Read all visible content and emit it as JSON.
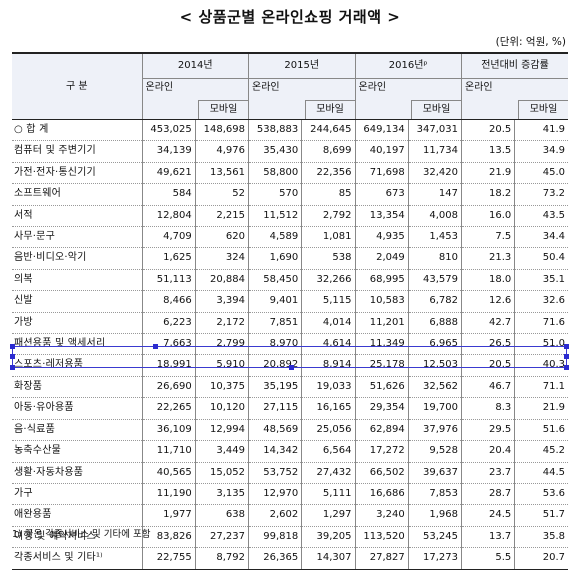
{
  "title": "< 상품군별 온라인쇼핑 거래액 >",
  "unit": "(단위: 억원, %)",
  "header": {
    "category": "구  분",
    "years": [
      "2014년",
      "2015년",
      "2016년ᵖ",
      "전년대비 증감률"
    ],
    "online": "온라인",
    "mobile": "모바일"
  },
  "rows": [
    {
      "name": "○ 합  계",
      "v": [
        "453,025",
        "148,698",
        "538,883",
        "244,645",
        "649,134",
        "347,031",
        "20.5",
        "41.9"
      ]
    },
    {
      "name": "컴퓨터 및 주변기기",
      "v": [
        "34,139",
        "4,976",
        "35,430",
        "8,699",
        "40,197",
        "11,734",
        "13.5",
        "34.9"
      ]
    },
    {
      "name": "가전·전자·통신기기",
      "v": [
        "49,621",
        "13,561",
        "58,800",
        "22,356",
        "71,698",
        "32,420",
        "21.9",
        "45.0"
      ]
    },
    {
      "name": "소프트웨어",
      "v": [
        "584",
        "52",
        "570",
        "85",
        "673",
        "147",
        "18.2",
        "73.2"
      ]
    },
    {
      "name": "서적",
      "v": [
        "12,804",
        "2,215",
        "11,512",
        "2,792",
        "13,354",
        "4,008",
        "16.0",
        "43.5"
      ]
    },
    {
      "name": "사무·문구",
      "v": [
        "4,709",
        "620",
        "4,589",
        "1,081",
        "4,935",
        "1,453",
        "7.5",
        "34.4"
      ]
    },
    {
      "name": "음반·비디오·악기",
      "v": [
        "1,625",
        "324",
        "1,690",
        "538",
        "2,049",
        "810",
        "21.3",
        "50.4"
      ]
    },
    {
      "name": "의복",
      "v": [
        "51,113",
        "20,884",
        "58,450",
        "32,266",
        "68,995",
        "43,579",
        "18.0",
        "35.1"
      ]
    },
    {
      "name": "신발",
      "v": [
        "8,466",
        "3,394",
        "9,401",
        "5,115",
        "10,583",
        "6,782",
        "12.6",
        "32.6"
      ]
    },
    {
      "name": "가방",
      "v": [
        "6,223",
        "2,172",
        "7,851",
        "4,014",
        "11,201",
        "6,888",
        "42.7",
        "71.6"
      ]
    },
    {
      "name": "패션용품 및 액세서리",
      "v": [
        "7,663",
        "2,799",
        "8,970",
        "4,614",
        "11,349",
        "6,965",
        "26.5",
        "51.0"
      ]
    },
    {
      "name": "스포츠·레저용품",
      "v": [
        "18,991",
        "5,910",
        "20,892",
        "8,914",
        "25,178",
        "12,503",
        "20.5",
        "40.3"
      ]
    },
    {
      "name": "화장품",
      "v": [
        "26,690",
        "10,375",
        "35,195",
        "19,033",
        "51,626",
        "32,562",
        "46.7",
        "71.1"
      ]
    },
    {
      "name": "아동·유아용품",
      "v": [
        "22,265",
        "10,120",
        "27,115",
        "16,165",
        "29,354",
        "19,700",
        "8.3",
        "21.9"
      ]
    },
    {
      "name": "음·식료품",
      "v": [
        "36,109",
        "12,994",
        "48,569",
        "25,056",
        "62,894",
        "37,976",
        "29.5",
        "51.6"
      ]
    },
    {
      "name": "농축수산물",
      "v": [
        "11,710",
        "3,449",
        "14,342",
        "6,564",
        "17,272",
        "9,528",
        "20.4",
        "45.2"
      ]
    },
    {
      "name": "생활·자동차용품",
      "v": [
        "40,565",
        "15,052",
        "53,752",
        "27,432",
        "66,502",
        "39,637",
        "23.7",
        "44.5"
      ]
    },
    {
      "name": "가구",
      "v": [
        "11,190",
        "3,135",
        "12,970",
        "5,111",
        "16,686",
        "7,853",
        "28.7",
        "53.6"
      ]
    },
    {
      "name": "애완용품",
      "v": [
        "1,977",
        "638",
        "2,602",
        "1,297",
        "3,240",
        "1,968",
        "24.5",
        "51.7"
      ]
    },
    {
      "name": "여행 및 예약서비스",
      "v": [
        "83,826",
        "27,237",
        "99,818",
        "39,205",
        "113,520",
        "53,245",
        "13.7",
        "35.8"
      ]
    },
    {
      "name": "각종서비스 및 기타¹⁾",
      "v": [
        "22,755",
        "8,792",
        "26,365",
        "14,307",
        "27,827",
        "17,273",
        "5.5",
        "20.7"
      ]
    }
  ],
  "note": "1) 꽃은 각종서비스 및 기타에 포함"
}
